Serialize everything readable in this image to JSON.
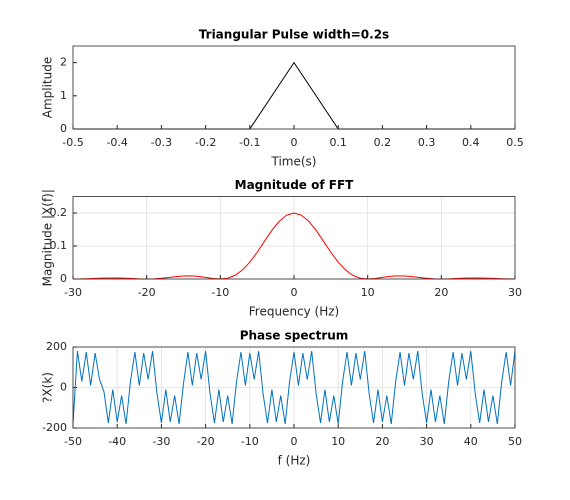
{
  "chart_data": [
    {
      "type": "line",
      "title": "Triangular Pulse width=0.2s",
      "xlabel": "Time(s)",
      "ylabel": "Amplitude",
      "x": [
        -0.5,
        -0.1,
        0,
        0.1,
        0.5
      ],
      "values": [
        0,
        0,
        2,
        0,
        0
      ],
      "color": "#000000",
      "xlim": [
        -0.5,
        0.5
      ],
      "xticks": [
        -0.5,
        -0.4,
        -0.3,
        -0.2,
        -0.1,
        0,
        0.1,
        0.2,
        0.3,
        0.4,
        0.5
      ],
      "ylim": [
        0,
        2.5
      ],
      "yticks": [
        0,
        1,
        2
      ],
      "grid": false
    },
    {
      "type": "line",
      "title": "Magnitude of FFT",
      "xlabel": "Frequency (Hz)",
      "ylabel": "Magnitude |X(f)|",
      "x": [
        -30,
        -29,
        -28,
        -27,
        -26,
        -25,
        -24,
        -23,
        -22,
        -21,
        -20,
        -19,
        -18,
        -17,
        -16,
        -15,
        -14,
        -13,
        -12,
        -11,
        -10,
        -9,
        -8,
        -7,
        -6,
        -5,
        -4,
        -3,
        -2,
        -1,
        0,
        1,
        2,
        3,
        4,
        5,
        6,
        7,
        8,
        9,
        10,
        11,
        12,
        13,
        14,
        15,
        16,
        17,
        18,
        19,
        20,
        21,
        22,
        23,
        24,
        25,
        26,
        27,
        28,
        29,
        30
      ],
      "values": [
        0,
        0.0002,
        0.0009,
        0.0018,
        0.0027,
        0.0032,
        0.0032,
        0.0025,
        0.0014,
        0.0004,
        0,
        0.0005,
        0.0022,
        0.0046,
        0.0072,
        0.009,
        0.0094,
        0.0078,
        0.0049,
        0.0016,
        0,
        0.0024,
        0.0109,
        0.0271,
        0.0509,
        0.0811,
        0.1146,
        0.1474,
        0.175,
        0.1935,
        0.2,
        0.1935,
        0.175,
        0.1474,
        0.1146,
        0.0811,
        0.0509,
        0.0271,
        0.0109,
        0.0024,
        0,
        0.0016,
        0.0049,
        0.0078,
        0.0094,
        0.009,
        0.0072,
        0.0046,
        0.0022,
        0.0005,
        0,
        0.0004,
        0.0014,
        0.0025,
        0.0032,
        0.0032,
        0.0027,
        0.0018,
        0.0009,
        0.0002,
        0
      ],
      "color": "#ff0000",
      "xlim": [
        -30,
        30
      ],
      "xticks": [
        -30,
        -20,
        -10,
        0,
        10,
        20,
        30
      ],
      "ylim": [
        0,
        0.25
      ],
      "yticks": [
        0,
        0.1,
        0.2
      ],
      "grid": true
    },
    {
      "type": "line",
      "title": "Phase spectrum",
      "xlabel": "f (Hz)",
      "ylabel": "?X(k)",
      "x": [
        -50,
        -49,
        -48,
        -47,
        -46,
        -45,
        -44,
        -43,
        -42,
        -41,
        -40,
        -39,
        -38,
        -37,
        -36,
        -35,
        -34,
        -33,
        -32,
        -31,
        -30,
        -29,
        -28,
        -27,
        -26,
        -25,
        -24,
        -23,
        -22,
        -21,
        -20,
        -19,
        -18,
        -17,
        -16,
        -15,
        -14,
        -13,
        -12,
        -11,
        -10,
        -9,
        -8,
        -7,
        -6,
        -5,
        -4,
        -3,
        -2,
        -1,
        0,
        1,
        2,
        3,
        4,
        5,
        6,
        7,
        8,
        9,
        10,
        11,
        12,
        13,
        14,
        15,
        16,
        17,
        18,
        19,
        20,
        21,
        22,
        23,
        24,
        25,
        26,
        27,
        28,
        29,
        30,
        31,
        32,
        33,
        34,
        35,
        36,
        37,
        38,
        39,
        40,
        41,
        42,
        43,
        44,
        45,
        46,
        47,
        48,
        49,
        50
      ],
      "values": [
        -180,
        180,
        30,
        175,
        10,
        170,
        40,
        -20,
        -175,
        -10,
        -170,
        -40,
        -180,
        30,
        175,
        10,
        170,
        40,
        180,
        -30,
        -175,
        -10,
        -170,
        -40,
        -180,
        20,
        175,
        10,
        170,
        40,
        180,
        -30,
        -175,
        -10,
        -170,
        -40,
        -180,
        30,
        175,
        10,
        170,
        40,
        180,
        -30,
        -175,
        -10,
        -170,
        -40,
        -180,
        30,
        175,
        10,
        170,
        40,
        180,
        -30,
        -175,
        -10,
        -170,
        -40,
        -180,
        30,
        175,
        10,
        170,
        40,
        180,
        -30,
        -175,
        -10,
        -170,
        -40,
        -180,
        30,
        175,
        10,
        170,
        40,
        180,
        -30,
        -175,
        -10,
        -170,
        -40,
        -180,
        30,
        175,
        10,
        170,
        40,
        180,
        -30,
        -175,
        -10,
        -170,
        -40,
        -180,
        30,
        175,
        10,
        180
      ],
      "color": "#0072bd",
      "xlim": [
        -50,
        50
      ],
      "xticks": [
        -50,
        -40,
        -30,
        -20,
        -10,
        0,
        10,
        20,
        30,
        40,
        50
      ],
      "ylim": [
        -200,
        200
      ],
      "yticks": [
        -200,
        0,
        200
      ],
      "grid": true
    }
  ]
}
